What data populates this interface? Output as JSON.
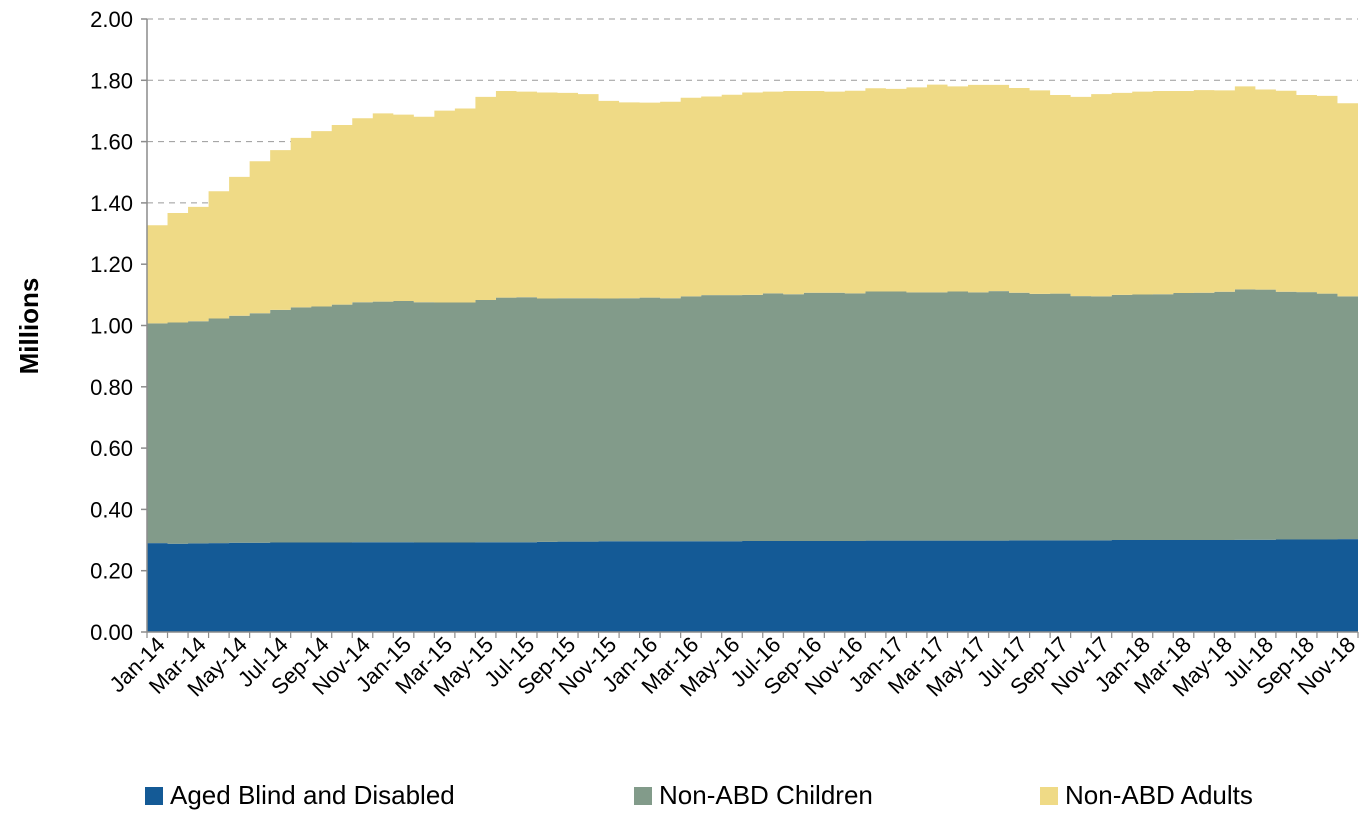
{
  "chart_data": {
    "type": "area",
    "stacked": true,
    "ylabel": "Millions",
    "xlabel": "",
    "ylim": [
      0,
      2.0
    ],
    "yticks": [
      "0.00",
      "0.20",
      "0.40",
      "0.60",
      "0.80",
      "1.00",
      "1.20",
      "1.40",
      "1.60",
      "1.80",
      "2.00"
    ],
    "grid": "horizontal dashed",
    "legend_position": "bottom",
    "x": [
      "Jan-14",
      "Feb-14",
      "Mar-14",
      "Apr-14",
      "May-14",
      "Jun-14",
      "Jul-14",
      "Aug-14",
      "Sep-14",
      "Oct-14",
      "Nov-14",
      "Dec-14",
      "Jan-15",
      "Feb-15",
      "Mar-15",
      "Apr-15",
      "May-15",
      "Jun-15",
      "Jul-15",
      "Aug-15",
      "Sep-15",
      "Oct-15",
      "Nov-15",
      "Dec-15",
      "Jan-16",
      "Feb-16",
      "Mar-16",
      "Apr-16",
      "May-16",
      "Jun-16",
      "Jul-16",
      "Aug-16",
      "Sep-16",
      "Oct-16",
      "Nov-16",
      "Dec-16",
      "Jan-17",
      "Feb-17",
      "Mar-17",
      "Apr-17",
      "May-17",
      "Jun-17",
      "Jul-17",
      "Aug-17",
      "Sep-17",
      "Oct-17",
      "Nov-17",
      "Dec-17",
      "Jan-18",
      "Feb-18",
      "Mar-18",
      "Apr-18",
      "May-18",
      "Jun-18",
      "Jul-18",
      "Aug-18",
      "Sep-18",
      "Oct-18",
      "Nov-18"
    ],
    "xtick_labels": [
      "Jan-14",
      "Mar-14",
      "May-14",
      "Jul-14",
      "Sep-14",
      "Nov-14",
      "Jan-15",
      "Mar-15",
      "May-15",
      "Jul-15",
      "Sep-15",
      "Nov-15",
      "Jan-16",
      "Mar-16",
      "May-16",
      "Jul-16",
      "Sep-16",
      "Nov-16",
      "Jan-17",
      "Mar-17",
      "May-17",
      "Jul-17",
      "Sep-17",
      "Nov-17",
      "Jan-18",
      "Mar-18",
      "May-18",
      "Jul-18",
      "Sep-18",
      "Nov-18"
    ],
    "series": [
      {
        "name": "Aged Blind and Disabled",
        "color": "#145A96",
        "values": [
          0.29,
          0.288,
          0.289,
          0.29,
          0.291,
          0.291,
          0.292,
          0.292,
          0.292,
          0.292,
          0.293,
          0.293,
          0.293,
          0.292,
          0.292,
          0.292,
          0.293,
          0.293,
          0.293,
          0.294,
          0.295,
          0.295,
          0.296,
          0.296,
          0.296,
          0.296,
          0.296,
          0.296,
          0.296,
          0.297,
          0.297,
          0.297,
          0.297,
          0.297,
          0.297,
          0.298,
          0.298,
          0.298,
          0.298,
          0.298,
          0.298,
          0.298,
          0.299,
          0.299,
          0.299,
          0.299,
          0.299,
          0.3,
          0.3,
          0.3,
          0.3,
          0.3,
          0.3,
          0.301,
          0.301,
          0.302,
          0.302,
          0.302,
          0.303
        ]
      },
      {
        "name": "Non-ABD Children",
        "color": "#829B8A",
        "values": [
          0.717,
          0.722,
          0.725,
          0.733,
          0.741,
          0.749,
          0.759,
          0.767,
          0.77,
          0.776,
          0.783,
          0.785,
          0.787,
          0.784,
          0.783,
          0.783,
          0.79,
          0.798,
          0.799,
          0.794,
          0.794,
          0.794,
          0.792,
          0.793,
          0.795,
          0.793,
          0.799,
          0.803,
          0.803,
          0.803,
          0.808,
          0.805,
          0.81,
          0.81,
          0.808,
          0.813,
          0.813,
          0.81,
          0.81,
          0.813,
          0.81,
          0.814,
          0.808,
          0.804,
          0.805,
          0.797,
          0.796,
          0.8,
          0.801,
          0.802,
          0.806,
          0.807,
          0.81,
          0.817,
          0.816,
          0.808,
          0.807,
          0.802,
          0.792
        ]
      },
      {
        "name": "Non-ABD Adults",
        "color": "#EFDA86",
        "values": [
          0.32,
          0.357,
          0.373,
          0.415,
          0.453,
          0.496,
          0.521,
          0.553,
          0.572,
          0.586,
          0.6,
          0.614,
          0.608,
          0.605,
          0.626,
          0.633,
          0.663,
          0.674,
          0.671,
          0.672,
          0.67,
          0.666,
          0.645,
          0.639,
          0.636,
          0.641,
          0.648,
          0.648,
          0.654,
          0.66,
          0.658,
          0.663,
          0.658,
          0.656,
          0.661,
          0.663,
          0.661,
          0.669,
          0.678,
          0.669,
          0.677,
          0.673,
          0.668,
          0.664,
          0.648,
          0.65,
          0.66,
          0.659,
          0.662,
          0.663,
          0.659,
          0.661,
          0.657,
          0.662,
          0.653,
          0.656,
          0.643,
          0.645,
          0.63
        ]
      }
    ]
  }
}
